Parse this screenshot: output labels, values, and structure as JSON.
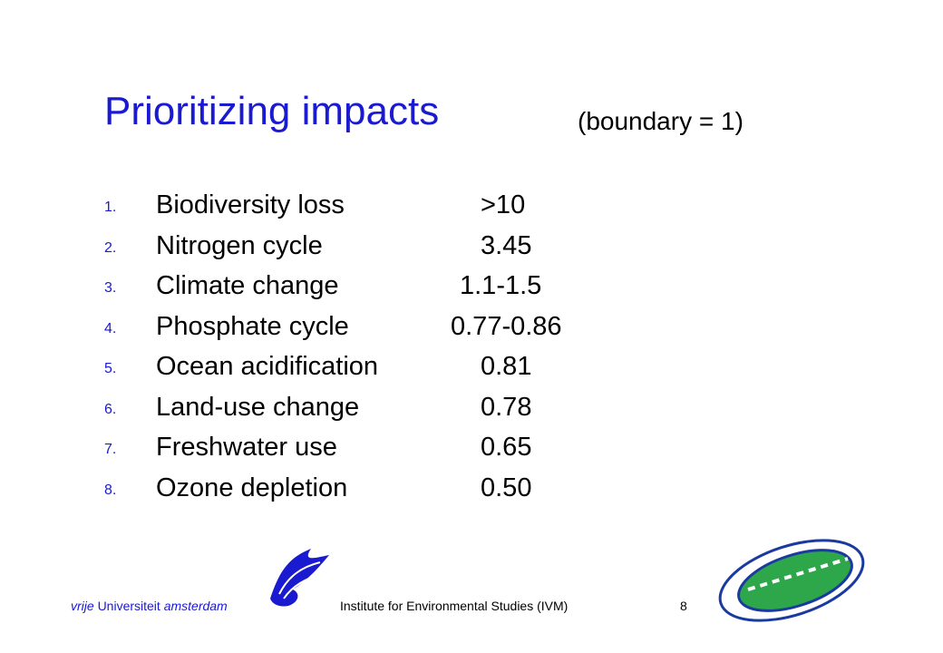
{
  "title": "Prioritizing impacts",
  "subtitle": "(boundary = 1)",
  "items": [
    {
      "number": "1.",
      "name": "Biodiversity loss",
      "value": ">10"
    },
    {
      "number": "2.",
      "name": "Nitrogen cycle",
      "value": "3.45"
    },
    {
      "number": "3.",
      "name": "Climate change",
      "value": "1.1-1.5"
    },
    {
      "number": "4.",
      "name": "Phosphate cycle",
      "value": "0.77-0.86"
    },
    {
      "number": "5.",
      "name": "Ocean acidification",
      "value": "0.81"
    },
    {
      "number": "6.",
      "name": "Land-use change",
      "value": "0.78"
    },
    {
      "number": "7.",
      "name": "Freshwater use",
      "value": "0.65"
    },
    {
      "number": "8.",
      "name": "Ozone depletion",
      "value": "0.50"
    }
  ],
  "footer": {
    "university": [
      "vrije",
      "Universiteit",
      "amsterdam"
    ],
    "institute": "Institute for Environmental Studies (IVM)",
    "page": "8"
  }
}
